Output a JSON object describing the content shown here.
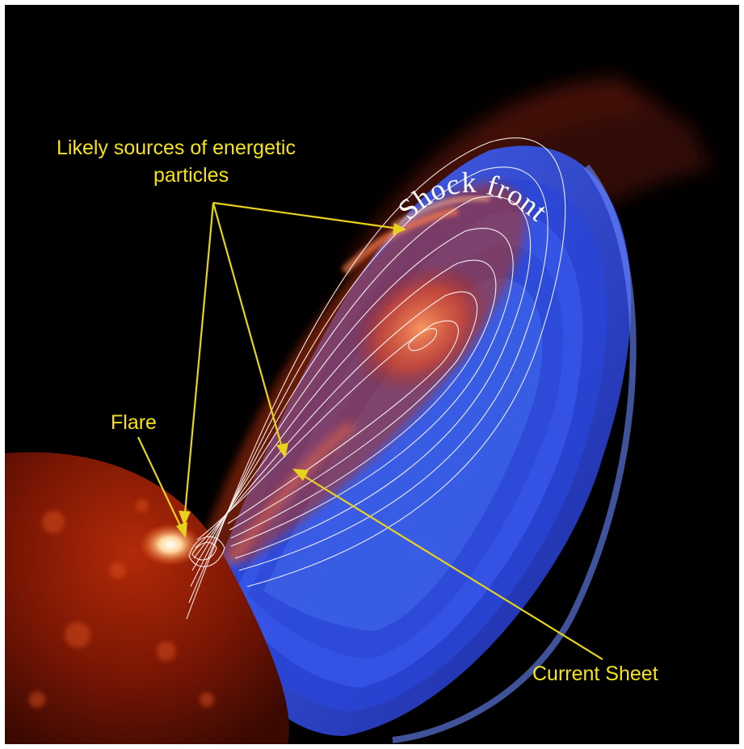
{
  "labels": {
    "sources_line1": "Likely sources of energetic",
    "sources_line2": "particles",
    "flare": "Flare",
    "current_sheet": "Current Sheet",
    "shock_front": "Shock front"
  },
  "colors": {
    "label": "#f6e21a",
    "arrow": "#e8d31c",
    "field_lines": "#ffffff",
    "background": "#000000",
    "sun": "#8a1a05",
    "cme_blue": "#2f4fe0",
    "cme_red": "#e05020"
  }
}
